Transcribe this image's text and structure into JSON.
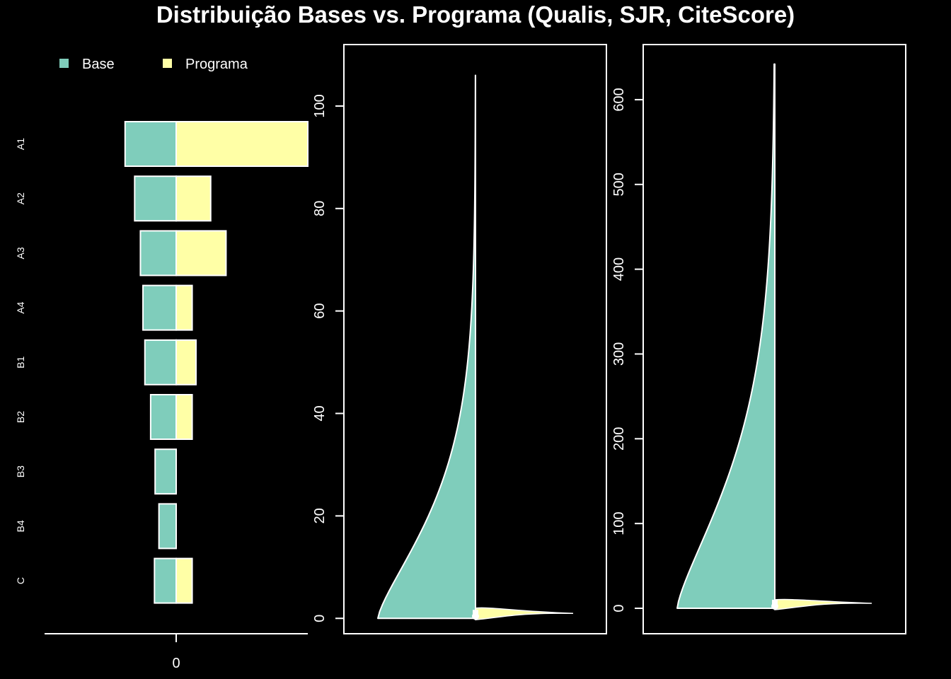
{
  "title": "Distribuição Bases vs. Programa (Qualis, SJR, CiteScore)",
  "colors": {
    "base": "#7fcdbb",
    "programa": "#ffffa6",
    "background": "#000000",
    "foreground": "#ffffff"
  },
  "chart_data": [
    {
      "type": "bar",
      "orientation": "horizontal-diverging",
      "categories": [
        "A1",
        "A2",
        "A3",
        "A4",
        "B1",
        "B2",
        "B3",
        "B4",
        "C"
      ],
      "series": [
        {
          "name": "Base",
          "values": [
            -4.0,
            -3.25,
            -2.8,
            -2.6,
            -2.45,
            -2.0,
            -1.65,
            -1.35,
            -1.7
          ]
        },
        {
          "name": "Programa",
          "values": [
            10.3,
            2.7,
            3.9,
            1.25,
            1.55,
            1.25,
            0,
            0,
            1.25
          ]
        }
      ],
      "xlim": [
        -10.3,
        10.3
      ],
      "xticks": [
        "0"
      ],
      "legend": "top-left"
    },
    {
      "type": "area",
      "subtype": "split-violin",
      "yticks": [
        "0",
        "20",
        "40",
        "60",
        "80",
        "100"
      ],
      "ylim": [
        -3,
        112
      ],
      "base_max": 106,
      "programa_max": 2
    },
    {
      "type": "area",
      "subtype": "split-violin",
      "yticks": [
        "0",
        "100",
        "200",
        "300",
        "400",
        "500",
        "600"
      ],
      "ylim": [
        -30,
        665
      ],
      "base_max": 642,
      "programa_max": 10
    }
  ]
}
